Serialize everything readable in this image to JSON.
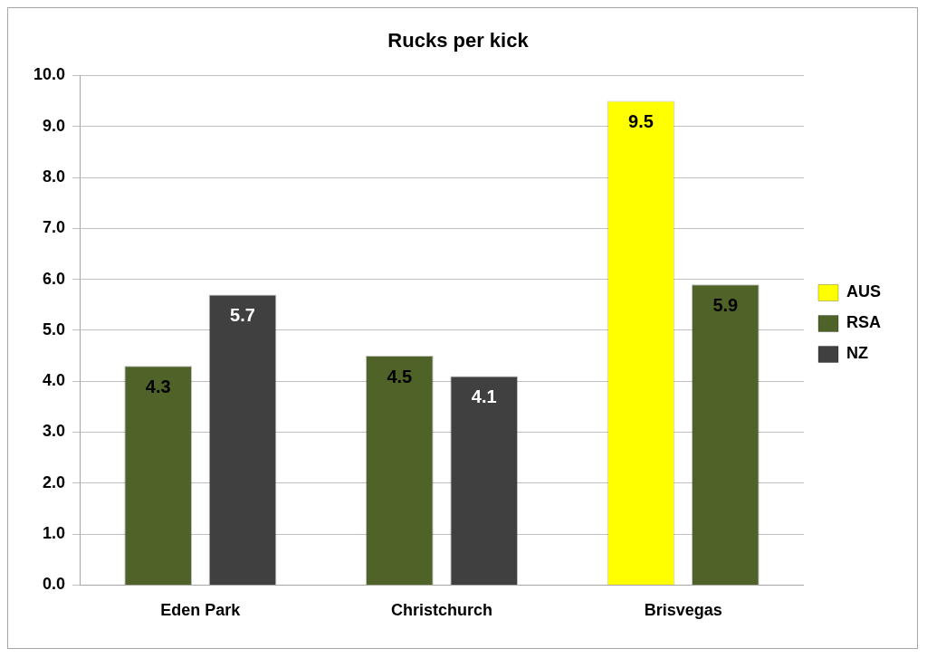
{
  "chart_data": {
    "type": "bar",
    "title": "Rucks per kick",
    "categories": [
      "Eden Park",
      "Christchurch",
      "Brisvegas"
    ],
    "series": [
      {
        "name": "AUS",
        "color": "#ffff00",
        "values": [
          null,
          null,
          9.5
        ]
      },
      {
        "name": "RSA",
        "color": "#4f6228",
        "values": [
          4.3,
          4.5,
          5.9
        ]
      },
      {
        "name": "NZ",
        "color": "#404040",
        "values": [
          5.7,
          4.1,
          null
        ]
      }
    ],
    "ylim": [
      0,
      10
    ],
    "yticks": [
      {
        "value": 0,
        "label": "0.0"
      },
      {
        "value": 1,
        "label": "1.0"
      },
      {
        "value": 2,
        "label": "2.0"
      },
      {
        "value": 3,
        "label": "3.0"
      },
      {
        "value": 4,
        "label": "4.0"
      },
      {
        "value": 5,
        "label": "5.0"
      },
      {
        "value": 6,
        "label": "6.0"
      },
      {
        "value": 7,
        "label": "7.0"
      },
      {
        "value": 8,
        "label": "8.0"
      },
      {
        "value": 9,
        "label": "9.0"
      },
      {
        "value": 10,
        "label": "10.0"
      }
    ],
    "grid": "y",
    "legend": "right",
    "data_labels": true
  }
}
